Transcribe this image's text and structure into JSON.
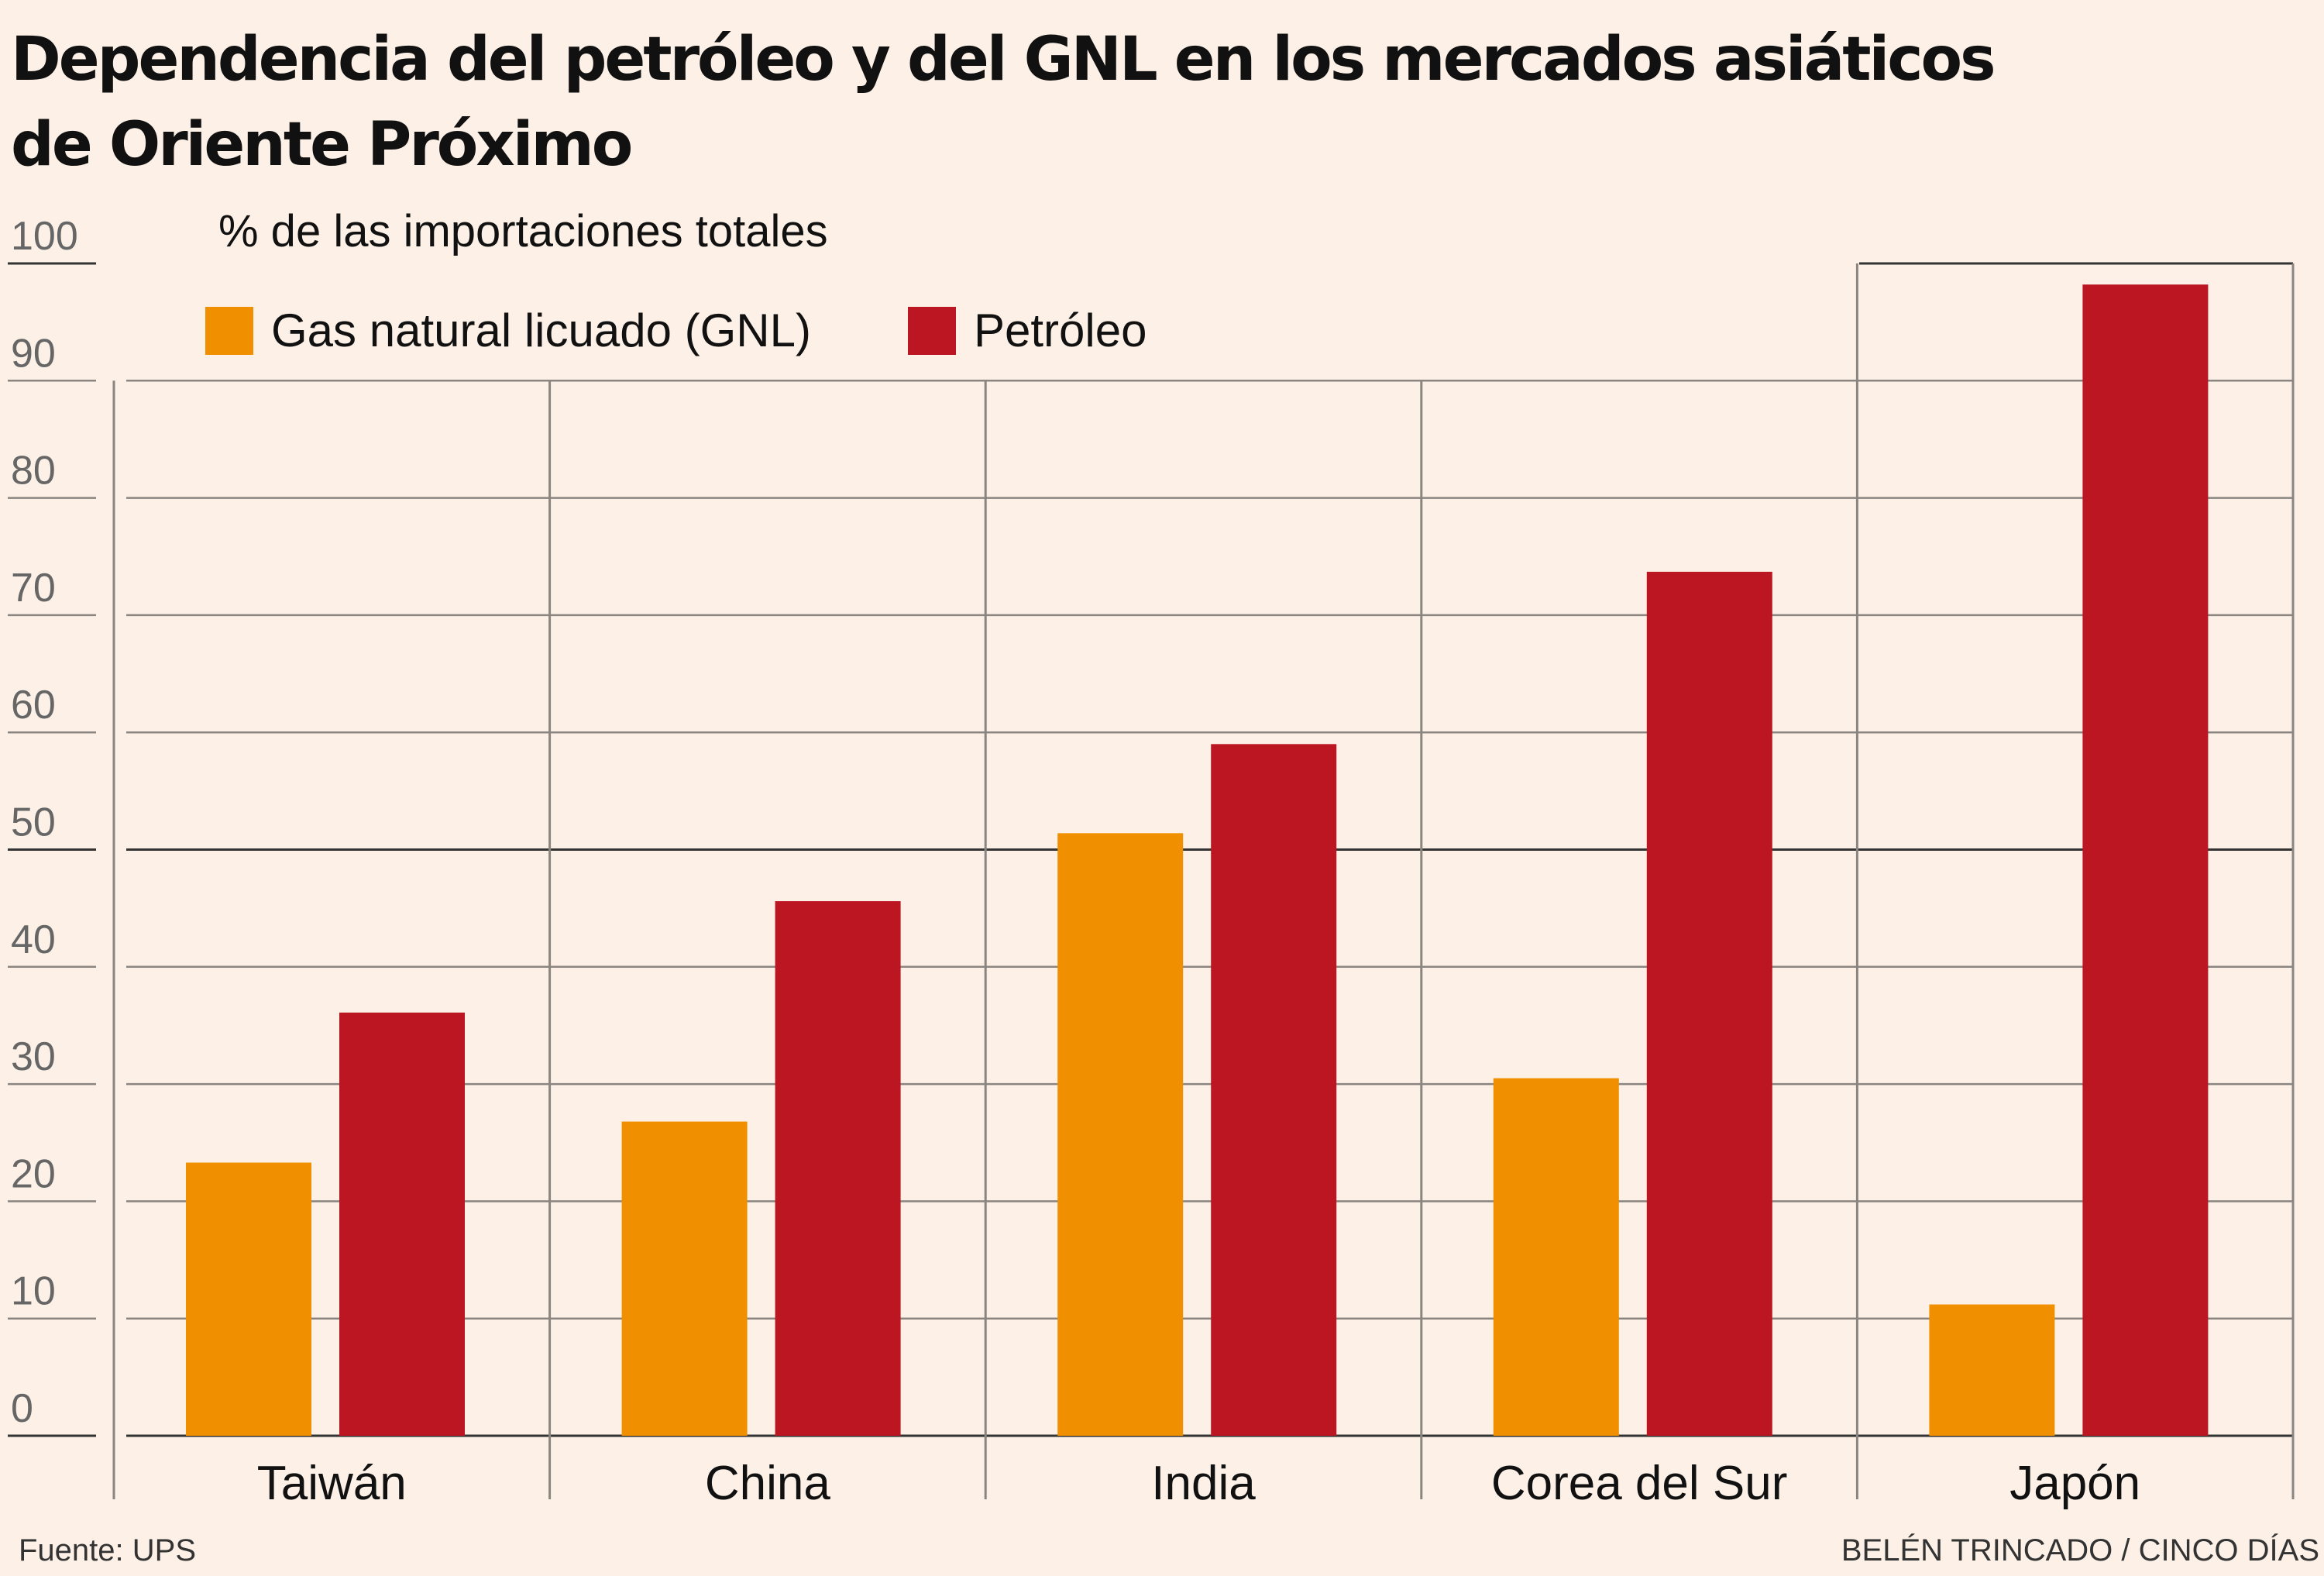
{
  "title": {
    "line1": "Dependencia del petróleo y del GNL en los mercados asiáticos",
    "line2": "de Oriente Próximo"
  },
  "footer": {
    "source": "Fuente: UPS",
    "credit": "BELÉN TRINCADO / CINCO DÍAS"
  },
  "colors": {
    "background": "#fdf1e7",
    "gnl": "#f09000",
    "petroleo": "#bd1623",
    "grid": "#8a8580",
    "axis": "#333333"
  },
  "chart_data": {
    "type": "bar",
    "ylabel": "% de las importaciones totales",
    "ylim": [
      0,
      100
    ],
    "yticks": [
      0,
      10,
      20,
      30,
      40,
      50,
      60,
      70,
      80,
      90,
      100
    ],
    "grid": true,
    "legend_position": "top-left",
    "categories": [
      "Taiwán",
      "China",
      "India",
      "Corea del Sur",
      "Japón"
    ],
    "series": [
      {
        "name": "Gas natural licuado (GNL)",
        "color": "#f09000",
        "values": [
          23.3,
          26.8,
          51.4,
          30.5,
          11.2
        ]
      },
      {
        "name": "Petróleo",
        "color": "#bd1623",
        "values": [
          36.1,
          45.6,
          59.0,
          73.7,
          98.2
        ]
      }
    ]
  }
}
